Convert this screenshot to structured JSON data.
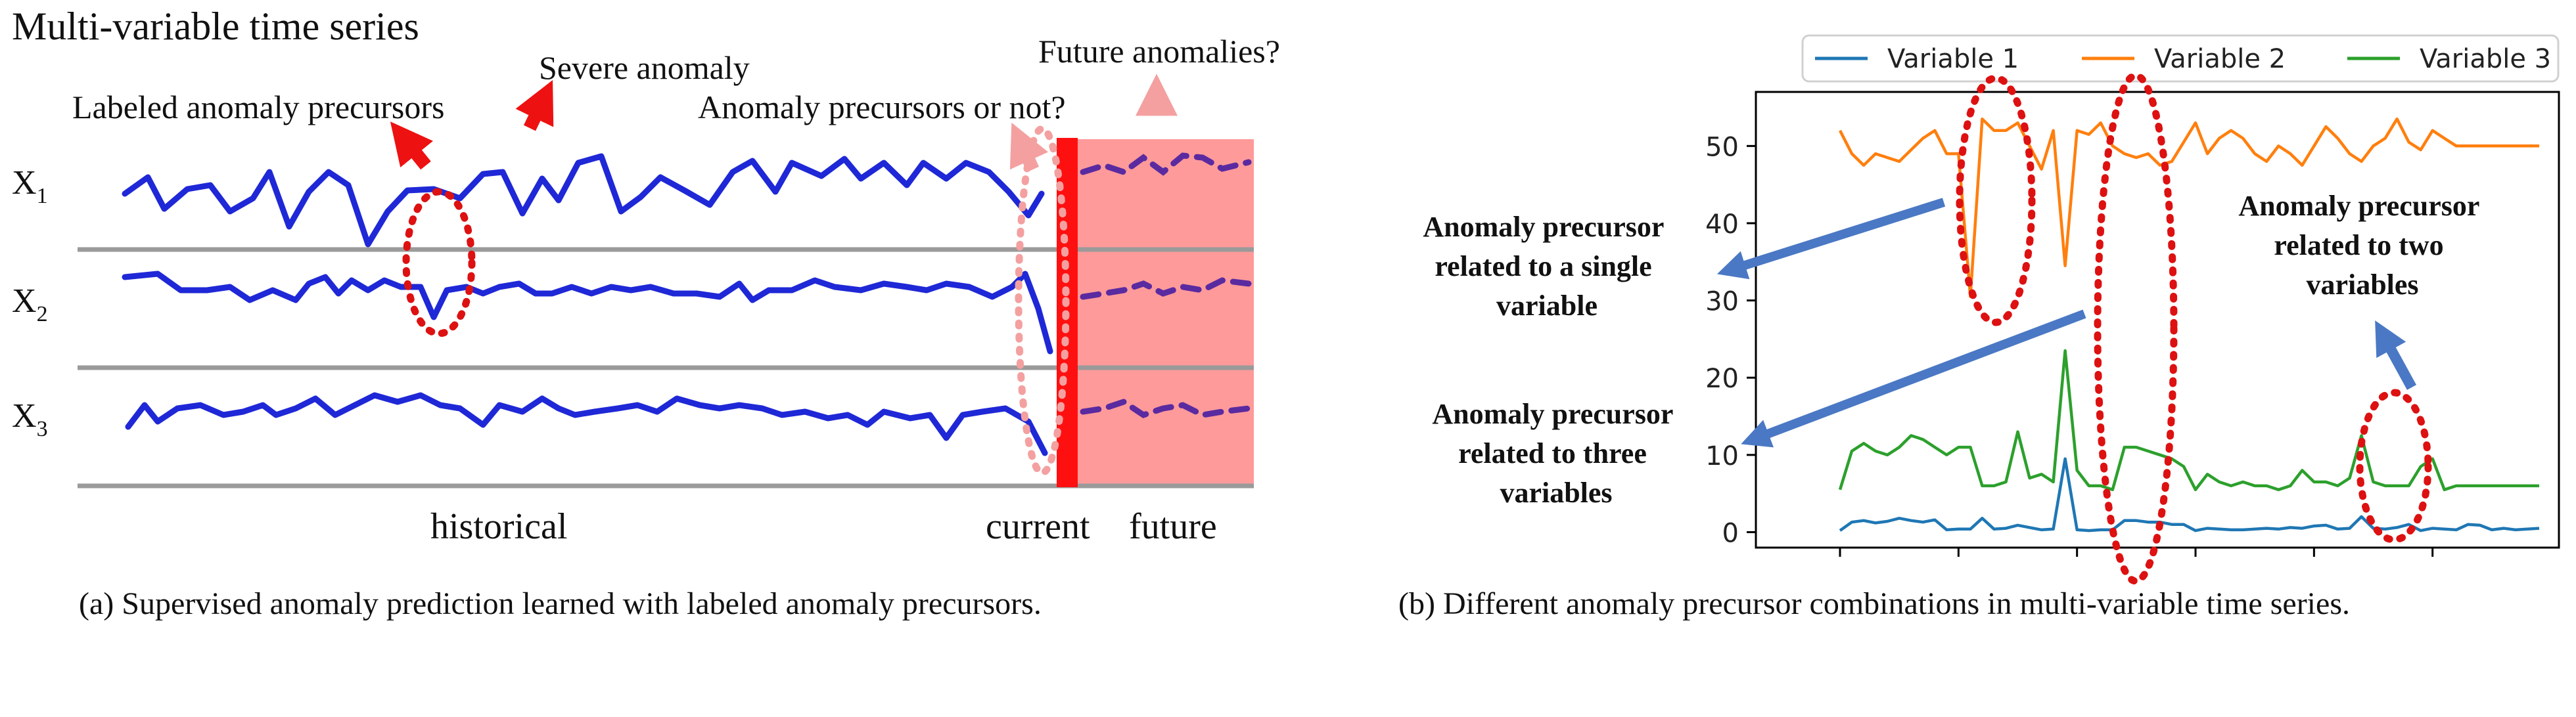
{
  "panel_a": {
    "title": "Multi-variable time series",
    "rows": [
      {
        "label": "X",
        "sub": "1"
      },
      {
        "label": "X",
        "sub": "2"
      },
      {
        "label": "X",
        "sub": "3"
      }
    ],
    "annotations": {
      "labeled_precursors": "Labeled anomaly precursors",
      "severe_anomaly": "Severe anomaly",
      "precursors_or_not": "Anomaly precursors or not?",
      "future_anomalies": "Future anomalies?"
    },
    "bottom": {
      "historical": "historical",
      "current": "current",
      "future": "future"
    },
    "caption": "(a)  Supervised anomaly prediction learned with labeled anomaly precursors.",
    "colors": {
      "signal": "#1f28d6",
      "future_signal": "#5a2aa0",
      "future_bg": "#ff9a9a",
      "current_bar": "#ff1010",
      "arrow_red": "#ee1111",
      "arrow_pink": "#f4a0a0",
      "ellipse": "#dd1111"
    }
  },
  "panel_b": {
    "annotations": {
      "single": [
        "Anomaly precursor",
        "related to a single",
        "variable"
      ],
      "three": [
        "Anomaly precursor",
        "related to three",
        "variables"
      ],
      "two": [
        "Anomaly precursor",
        "related to two",
        "variables"
      ]
    },
    "caption": "(b)  Different anomaly precursor combinations in multi-variable time series.",
    "colors": {
      "arrow_blue": "#4a78c4",
      "ellipse": "#dd1111"
    }
  },
  "chart_data": {
    "type": "line",
    "x": [
      0,
      1,
      2,
      3,
      4,
      5,
      6,
      7,
      8,
      9,
      10,
      11,
      12,
      13,
      14,
      15,
      16,
      17,
      18,
      19,
      20,
      21,
      22,
      23,
      24,
      25,
      26,
      27,
      28,
      29,
      30,
      31,
      32,
      33,
      34,
      35,
      36,
      37,
      38,
      39,
      40,
      41,
      42,
      43,
      44,
      45,
      46,
      47,
      48,
      49,
      50,
      51,
      52,
      53,
      54,
      55,
      56,
      57,
      58,
      59
    ],
    "series": [
      {
        "name": "Variable 1",
        "color": "#1f77b4",
        "values": [
          0.2,
          1.3,
          1.5,
          1.2,
          1.4,
          1.8,
          1.5,
          1.3,
          1.6,
          0.3,
          0.4,
          0.4,
          1.8,
          0.4,
          0.5,
          0.9,
          0.6,
          0.3,
          0.4,
          9.5,
          0.3,
          0.2,
          0.3,
          0.3,
          1.5,
          1.5,
          1.3,
          1.3,
          1.0,
          1.0,
          0.2,
          0.5,
          0.4,
          0.3,
          0.3,
          0.4,
          0.5,
          0.4,
          0.6,
          0.5,
          0.8,
          0.9,
          0.4,
          0.5,
          2.0,
          0.5,
          0.4,
          0.6,
          1.0,
          0.2,
          0.5,
          0.4,
          0.3,
          1.0,
          0.9,
          0.3,
          0.5,
          0.3,
          0.4,
          0.5
        ]
      },
      {
        "name": "Variable 2",
        "color": "#ff7f0e",
        "values": [
          52,
          49,
          47.5,
          49,
          48.5,
          48,
          49.5,
          51,
          52,
          49,
          49,
          30.5,
          53.5,
          52,
          52,
          53,
          50,
          47,
          52,
          34.5,
          52,
          51.5,
          53,
          50,
          49,
          48.5,
          49,
          47.5,
          48,
          50.5,
          53,
          49,
          51,
          52,
          51,
          49,
          48,
          50,
          49,
          47.5,
          50,
          52.5,
          51,
          49,
          48,
          50,
          51,
          53.5,
          50.5,
          49.5,
          52,
          51,
          50,
          50,
          50,
          50,
          50,
          50,
          50,
          50
        ]
      },
      {
        "name": "Variable 3",
        "color": "#2ca02c",
        "values": [
          5.5,
          10.5,
          11.5,
          10.5,
          10,
          11,
          12.5,
          12,
          11,
          10,
          11,
          11,
          6,
          6,
          6.5,
          13,
          7,
          7.5,
          6.5,
          23.5,
          8,
          6,
          6,
          5.5,
          11,
          11,
          10.5,
          10,
          9.5,
          8.5,
          5.5,
          7.5,
          6.5,
          6,
          6.5,
          6,
          6,
          5.5,
          6,
          8,
          6.5,
          6.5,
          6,
          7,
          12.5,
          6.5,
          6,
          6,
          6,
          8.5,
          9.5,
          5.5,
          6,
          6,
          6,
          6,
          6,
          6,
          6,
          6
        ]
      }
    ],
    "yticks": [
      0,
      10,
      20,
      30,
      40,
      50
    ],
    "ylim": [
      -2,
      57
    ],
    "legend_position": "top",
    "grid": false
  }
}
